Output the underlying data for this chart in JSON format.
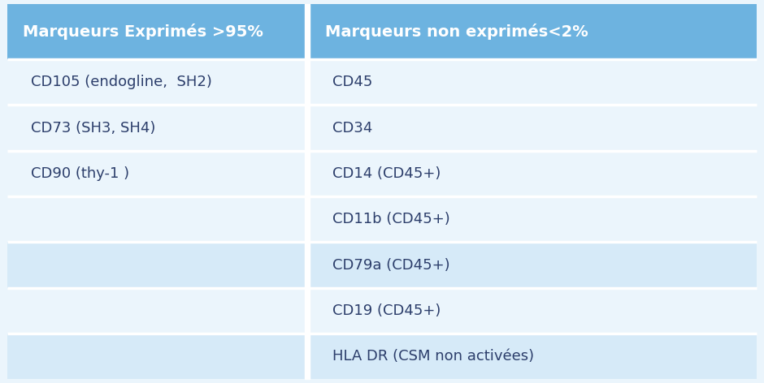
{
  "header_bg_color": "#6DB3E0",
  "header_text_color": "#FFFFFF",
  "body_bg_light": "#EBF5FC",
  "body_bg_dark": "#D6EAF8",
  "cell_text_color": "#2C3E6B",
  "divider_color": "#FFFFFF",
  "col1_header": "Marqueurs Exprimés >95%",
  "col2_header": "Marqueurs non exprimés<2%",
  "col1_rows": [
    "CD105 (endogline,  SH2)",
    "CD73 (SH3, SH4)",
    "CD90 (thy-1 )",
    "",
    "",
    "",
    ""
  ],
  "col2_rows": [
    "CD45",
    "CD34",
    "CD14 (CD45+)",
    "CD11b (CD45+)",
    "CD79a (CD45+)",
    "CD19 (CD45+)",
    "HLA DR (CSM non activées)"
  ],
  "row_shading": [
    0,
    0,
    0,
    0,
    1,
    0,
    1
  ],
  "header_fontsize": 14,
  "body_fontsize": 13,
  "figsize": [
    9.4,
    4.72
  ],
  "dpi": 100
}
